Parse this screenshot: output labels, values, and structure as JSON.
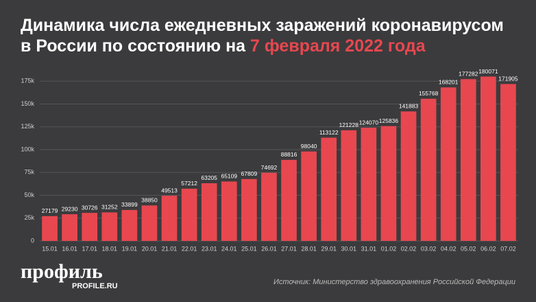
{
  "chart_data": {
    "type": "bar",
    "title": "Динамика числа ежедневных заражений коронавирусом в России по состоянию на",
    "title_highlight": "7 февраля 2022 года",
    "categories": [
      "15.01",
      "16.01",
      "17.01",
      "18.01",
      "19.01",
      "20.01",
      "21.01",
      "22.01",
      "23.01",
      "24.01",
      "25.01",
      "26.01",
      "27.01",
      "28.01",
      "29.01",
      "30.01",
      "31.01",
      "01.02",
      "02.02",
      "03.02",
      "04.02",
      "05.02",
      "06.02",
      "07.02"
    ],
    "values": [
      27179,
      29230,
      30726,
      31252,
      33899,
      38850,
      49513,
      57212,
      63205,
      65109,
      67809,
      74692,
      88816,
      98040,
      113122,
      121228,
      124070,
      125836,
      141883,
      155768,
      168201,
      177282,
      180071,
      171905
    ],
    "color": "#e8474f",
    "ylim": [
      0,
      185000
    ],
    "yticks": [
      0,
      {
        "value": 25000,
        "label": "25k"
      },
      {
        "value": 50000,
        "label": "50k"
      },
      {
        "value": 75000,
        "label": "75k"
      },
      {
        "value": 100000,
        "label": "100k"
      },
      {
        "value": 125000,
        "label": "125k"
      },
      {
        "value": 150000,
        "label": "150k"
      },
      {
        "value": 175000,
        "label": "175k"
      }
    ],
    "grid": true,
    "logo": "профиль",
    "logo_site": "PROFILE.RU",
    "source": "Источник: Министерство здравоохранения Российской Федерации"
  }
}
